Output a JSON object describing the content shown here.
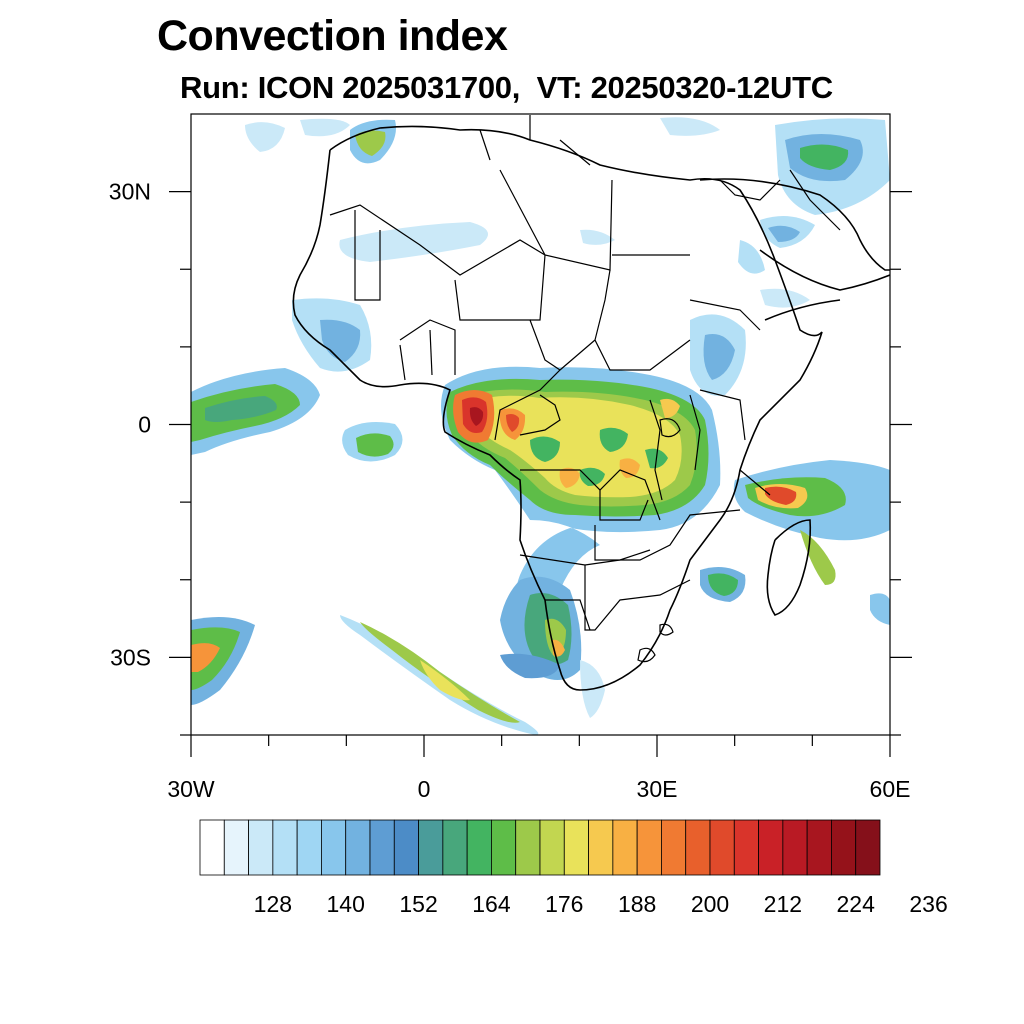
{
  "title": "Convection index",
  "subtitle": "Run: ICON 2025031700,  VT: 20250320-12UTC",
  "map": {
    "lon_range": [
      -30,
      60
    ],
    "lat_range": [
      -40,
      40
    ],
    "lon_ticks": [
      {
        "value": -30,
        "label": "30W"
      },
      {
        "value": 0,
        "label": "0"
      },
      {
        "value": 30,
        "label": "30E"
      },
      {
        "value": 60,
        "label": "60E"
      }
    ],
    "lat_ticks": [
      {
        "value": 30,
        "label": "30N"
      },
      {
        "value": 0,
        "label": "0"
      },
      {
        "value": -30,
        "label": "30S"
      }
    ],
    "minor_lon_ticks": [
      -20,
      -10,
      10,
      20,
      40,
      50
    ],
    "minor_lat_ticks": [
      20,
      10,
      -10,
      -20,
      -40
    ]
  },
  "colorbar": {
    "colors": [
      "#ffffff",
      "#e6f4fc",
      "#cbe9f8",
      "#b4e0f6",
      "#9fd6f3",
      "#88c6ec",
      "#72b2e0",
      "#5e9dd3",
      "#4c8cc7",
      "#4a9c9a",
      "#48a77c",
      "#43b461",
      "#5ebd48",
      "#9dc94a",
      "#c2d650",
      "#e9e25a",
      "#f6c94f",
      "#f8b043",
      "#f6943a",
      "#f07a32",
      "#e8602c",
      "#e04a2b",
      "#d9342b",
      "#c92127",
      "#b91a24",
      "#a8161f",
      "#95121a",
      "#85101a"
    ],
    "labels": [
      "128",
      "140",
      "152",
      "164",
      "176",
      "188",
      "200",
      "212",
      "224",
      "236"
    ]
  }
}
